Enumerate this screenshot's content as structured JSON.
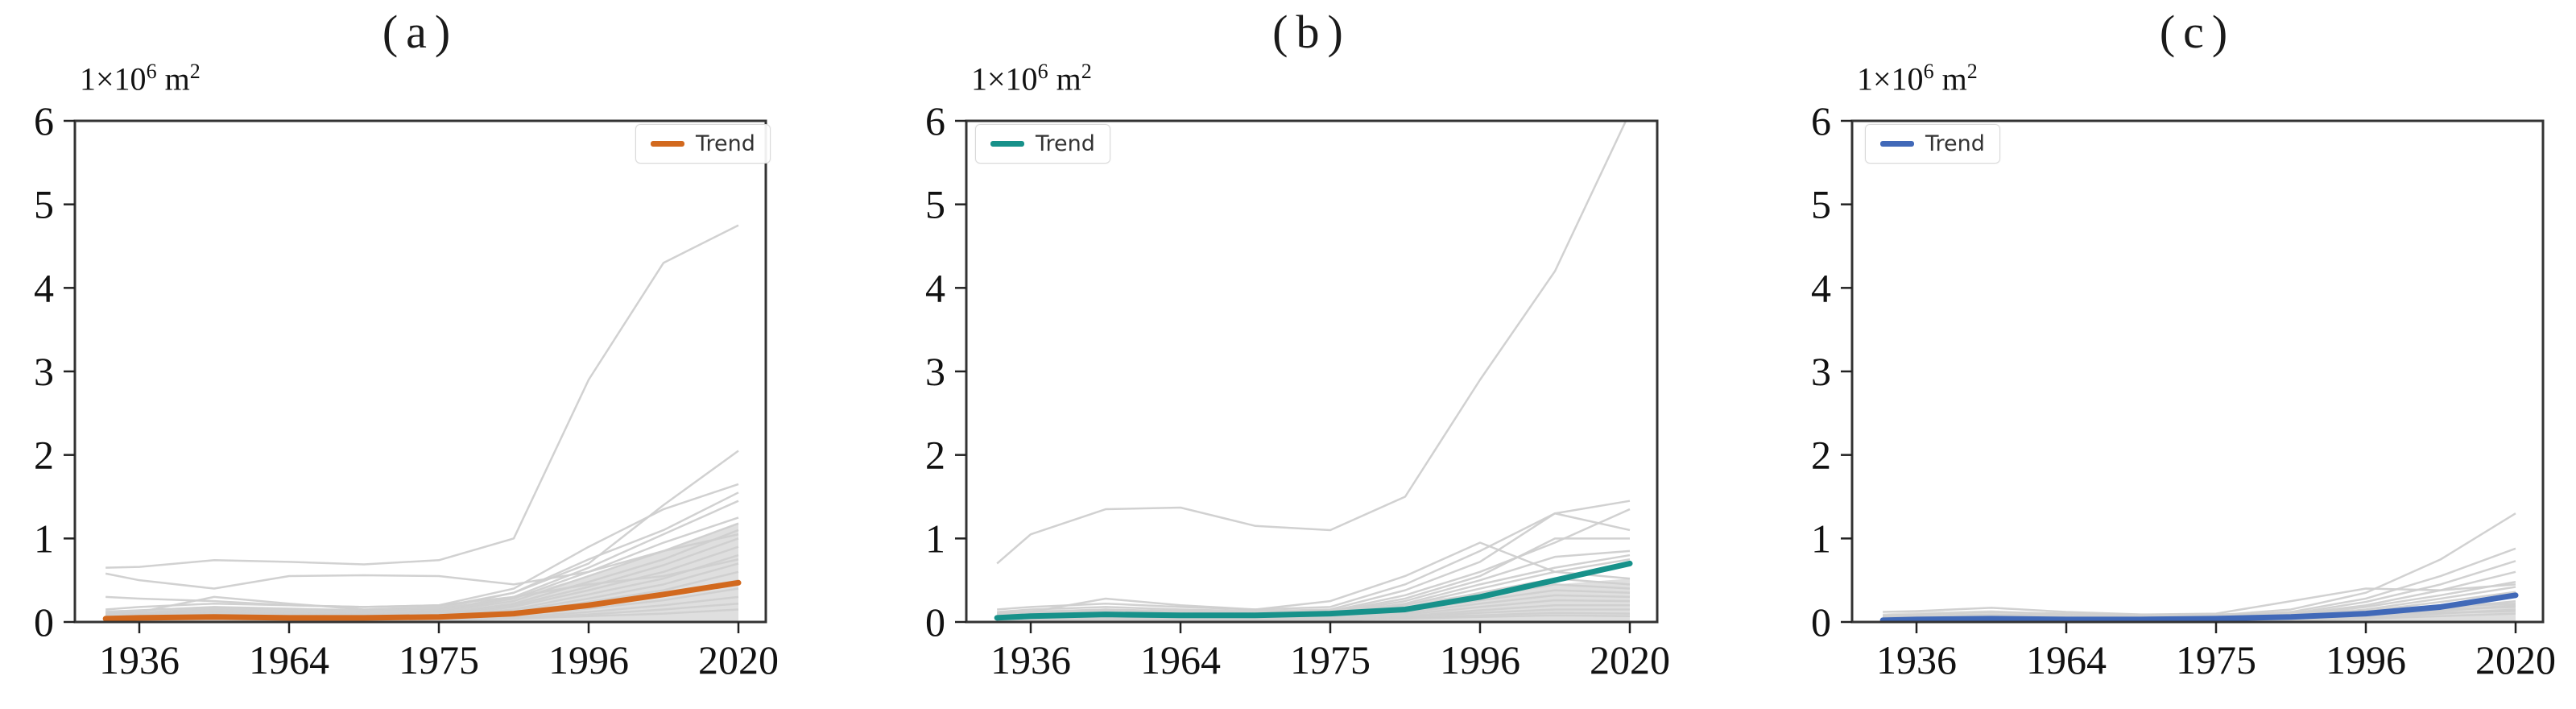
{
  "figure": {
    "ylabel": {
      "base": "1×10",
      "exp": "6",
      "unit": " m",
      "unit_exp": "2"
    },
    "legend_label": "Trend"
  },
  "chart_data": [
    {
      "type": "line",
      "title": "(a)",
      "ylabel": "1×10⁶ m²",
      "x_tick_labels": [
        "1936",
        "1964",
        "1975",
        "1996",
        "2020"
      ],
      "y_tick_labels": [
        "0",
        "1",
        "2",
        "3",
        "4",
        "5",
        "6"
      ],
      "ylim": [
        0,
        6
      ],
      "grid": false,
      "legend_position": "top-right",
      "legend_label": "Trend",
      "x_units": [
        -0.45,
        0,
        1,
        2,
        3,
        4,
        5,
        6,
        7,
        8
      ],
      "gray_color": "#cfcfcf",
      "band": {
        "color": "#dcdcdc",
        "top": [
          0.14,
          0.15,
          0.19,
          0.16,
          0.14,
          0.16,
          0.3,
          0.55,
          0.85,
          1.18
        ]
      },
      "series": [
        [
          0.65,
          0.66,
          0.74,
          0.72,
          0.69,
          0.74,
          1.0,
          2.9,
          4.3,
          4.75
        ],
        [
          0.1,
          0.12,
          0.3,
          0.22,
          0.15,
          0.18,
          0.35,
          0.7,
          1.4,
          2.05
        ],
        [
          0.58,
          0.5,
          0.4,
          0.55,
          0.56,
          0.55,
          0.45,
          0.6,
          0.85,
          1.05
        ],
        [
          0.15,
          0.18,
          0.22,
          0.2,
          0.18,
          0.2,
          0.4,
          0.9,
          1.35,
          1.65
        ],
        [
          0.12,
          0.14,
          0.18,
          0.16,
          0.14,
          0.16,
          0.35,
          0.75,
          1.1,
          1.55
        ],
        [
          0.1,
          0.11,
          0.16,
          0.14,
          0.12,
          0.15,
          0.3,
          0.65,
          1.05,
          1.45
        ],
        [
          0.08,
          0.1,
          0.14,
          0.12,
          0.1,
          0.13,
          0.28,
          0.6,
          0.95,
          1.25
        ],
        [
          0.07,
          0.09,
          0.12,
          0.11,
          0.09,
          0.12,
          0.25,
          0.55,
          0.85,
          1.18
        ],
        [
          0.06,
          0.08,
          0.11,
          0.1,
          0.08,
          0.1,
          0.22,
          0.48,
          0.75,
          1.1
        ],
        [
          0.05,
          0.07,
          0.1,
          0.09,
          0.07,
          0.09,
          0.2,
          0.42,
          0.68,
          1.0
        ],
        [
          0.05,
          0.06,
          0.09,
          0.08,
          0.06,
          0.08,
          0.18,
          0.38,
          0.6,
          0.9
        ],
        [
          0.04,
          0.05,
          0.08,
          0.07,
          0.05,
          0.07,
          0.15,
          0.33,
          0.52,
          0.8
        ],
        [
          0.04,
          0.05,
          0.07,
          0.06,
          0.05,
          0.06,
          0.13,
          0.28,
          0.45,
          0.7
        ],
        [
          0.03,
          0.04,
          0.06,
          0.05,
          0.04,
          0.05,
          0.11,
          0.24,
          0.38,
          0.6
        ],
        [
          0.03,
          0.04,
          0.05,
          0.05,
          0.04,
          0.05,
          0.09,
          0.2,
          0.32,
          0.5
        ],
        [
          0.02,
          0.03,
          0.05,
          0.04,
          0.03,
          0.04,
          0.08,
          0.16,
          0.26,
          0.4
        ],
        [
          0.02,
          0.03,
          0.04,
          0.03,
          0.03,
          0.03,
          0.06,
          0.12,
          0.2,
          0.3
        ],
        [
          0.02,
          0.02,
          0.03,
          0.03,
          0.02,
          0.03,
          0.05,
          0.09,
          0.15,
          0.22
        ],
        [
          0.01,
          0.02,
          0.03,
          0.02,
          0.02,
          0.02,
          0.04,
          0.07,
          0.1,
          0.15
        ],
        [
          0.3,
          0.28,
          0.25,
          0.2,
          0.18,
          0.2,
          0.3,
          0.45,
          0.55,
          0.75
        ]
      ],
      "trend": {
        "label": "Trend",
        "color": "#d2691e",
        "values": [
          0.04,
          0.05,
          0.06,
          0.05,
          0.05,
          0.06,
          0.1,
          0.2,
          0.33,
          0.47
        ]
      }
    },
    {
      "type": "line",
      "title": "(b)",
      "ylabel": "1×10⁶ m²",
      "x_tick_labels": [
        "1936",
        "1964",
        "1975",
        "1996",
        "2020"
      ],
      "y_tick_labels": [
        "0",
        "1",
        "2",
        "3",
        "4",
        "5",
        "6"
      ],
      "ylim": [
        0,
        6
      ],
      "grid": false,
      "legend_position": "top-left",
      "legend_label": "Trend",
      "x_units": [
        -0.45,
        0,
        1,
        2,
        3,
        4,
        5,
        6,
        7,
        8
      ],
      "gray_color": "#cfcfcf",
      "band": {
        "color": "#dcdcdc",
        "top": [
          0.12,
          0.14,
          0.16,
          0.13,
          0.12,
          0.14,
          0.22,
          0.35,
          0.45,
          0.52
        ]
      },
      "series": [
        [
          0.7,
          1.05,
          1.35,
          1.37,
          1.15,
          1.1,
          1.5,
          2.9,
          4.2,
          6.1
        ],
        [
          0.15,
          0.18,
          0.22,
          0.18,
          0.15,
          0.18,
          0.45,
          0.85,
          1.3,
          1.45
        ],
        [
          0.12,
          0.15,
          0.18,
          0.15,
          0.13,
          0.15,
          0.38,
          0.72,
          1.3,
          1.1
        ],
        [
          0.1,
          0.12,
          0.15,
          0.13,
          0.11,
          0.13,
          0.32,
          0.6,
          0.95,
          1.35
        ],
        [
          0.08,
          0.1,
          0.13,
          0.11,
          0.1,
          0.12,
          0.28,
          0.55,
          1.0,
          1.0
        ],
        [
          0.07,
          0.09,
          0.12,
          0.1,
          0.09,
          0.11,
          0.25,
          0.5,
          0.78,
          0.85
        ],
        [
          0.06,
          0.08,
          0.1,
          0.09,
          0.08,
          0.1,
          0.22,
          0.45,
          0.65,
          0.8
        ],
        [
          0.06,
          0.07,
          0.09,
          0.08,
          0.07,
          0.09,
          0.2,
          0.4,
          0.6,
          0.52
        ],
        [
          0.05,
          0.06,
          0.08,
          0.07,
          0.06,
          0.08,
          0.17,
          0.35,
          0.52,
          0.45
        ],
        [
          0.05,
          0.06,
          0.07,
          0.06,
          0.06,
          0.07,
          0.15,
          0.3,
          0.45,
          0.4
        ],
        [
          0.04,
          0.05,
          0.06,
          0.06,
          0.05,
          0.06,
          0.13,
          0.26,
          0.38,
          0.35
        ],
        [
          0.04,
          0.04,
          0.06,
          0.05,
          0.04,
          0.05,
          0.11,
          0.22,
          0.32,
          0.3
        ],
        [
          0.03,
          0.04,
          0.05,
          0.04,
          0.04,
          0.05,
          0.09,
          0.18,
          0.26,
          0.25
        ],
        [
          0.03,
          0.03,
          0.04,
          0.04,
          0.03,
          0.04,
          0.07,
          0.14,
          0.2,
          0.2
        ],
        [
          0.02,
          0.03,
          0.04,
          0.03,
          0.03,
          0.03,
          0.06,
          0.11,
          0.15,
          0.15
        ],
        [
          0.02,
          0.02,
          0.03,
          0.03,
          0.02,
          0.03,
          0.05,
          0.08,
          0.11,
          0.1
        ],
        [
          0.01,
          0.02,
          0.02,
          0.02,
          0.02,
          0.02,
          0.04,
          0.06,
          0.08,
          0.07
        ],
        [
          0.1,
          0.12,
          0.28,
          0.2,
          0.15,
          0.25,
          0.55,
          0.95,
          0.6,
          0.75
        ]
      ],
      "trend": {
        "label": "Trend",
        "color": "#17918a",
        "values": [
          0.05,
          0.07,
          0.09,
          0.08,
          0.08,
          0.1,
          0.15,
          0.3,
          0.5,
          0.7
        ]
      }
    },
    {
      "type": "line",
      "title": "(c)",
      "ylabel": "1×10⁶ m²",
      "x_tick_labels": [
        "1936",
        "1964",
        "1975",
        "1996",
        "2020"
      ],
      "y_tick_labels": [
        "0",
        "1",
        "2",
        "3",
        "4",
        "5",
        "6"
      ],
      "ylim": [
        0,
        6
      ],
      "grid": false,
      "legend_position": "top-left",
      "legend_label": "Trend",
      "x_units": [
        -0.45,
        0,
        1,
        2,
        3,
        4,
        5,
        6,
        7,
        8
      ],
      "gray_color": "#cfcfcf",
      "band": {
        "color": "#dcdcdc",
        "top": [
          0.1,
          0.12,
          0.14,
          0.1,
          0.08,
          0.09,
          0.12,
          0.15,
          0.2,
          0.25
        ]
      },
      "series": [
        [
          0.05,
          0.06,
          0.08,
          0.07,
          0.06,
          0.08,
          0.15,
          0.35,
          0.75,
          1.3
        ],
        [
          0.04,
          0.05,
          0.07,
          0.06,
          0.05,
          0.07,
          0.12,
          0.28,
          0.55,
          0.88
        ],
        [
          0.04,
          0.05,
          0.06,
          0.05,
          0.05,
          0.06,
          0.1,
          0.24,
          0.45,
          0.73
        ],
        [
          0.03,
          0.04,
          0.05,
          0.05,
          0.04,
          0.05,
          0.09,
          0.2,
          0.38,
          0.6
        ],
        [
          0.12,
          0.13,
          0.17,
          0.12,
          0.09,
          0.1,
          0.25,
          0.4,
          0.38,
          0.45
        ],
        [
          0.03,
          0.04,
          0.05,
          0.04,
          0.04,
          0.05,
          0.08,
          0.18,
          0.32,
          0.48
        ],
        [
          0.03,
          0.03,
          0.04,
          0.04,
          0.03,
          0.04,
          0.07,
          0.15,
          0.28,
          0.42
        ],
        [
          0.02,
          0.03,
          0.04,
          0.03,
          0.03,
          0.04,
          0.06,
          0.13,
          0.24,
          0.36
        ],
        [
          0.02,
          0.03,
          0.03,
          0.03,
          0.02,
          0.03,
          0.05,
          0.11,
          0.2,
          0.3
        ],
        [
          0.02,
          0.02,
          0.03,
          0.02,
          0.02,
          0.03,
          0.05,
          0.09,
          0.16,
          0.25
        ],
        [
          0.01,
          0.02,
          0.02,
          0.02,
          0.02,
          0.02,
          0.04,
          0.07,
          0.13,
          0.2
        ],
        [
          0.01,
          0.01,
          0.02,
          0.02,
          0.01,
          0.02,
          0.03,
          0.05,
          0.1,
          0.15
        ],
        [
          0.01,
          0.01,
          0.02,
          0.01,
          0.01,
          0.01,
          0.02,
          0.04,
          0.07,
          0.1
        ],
        [
          0.08,
          0.09,
          0.12,
          0.1,
          0.08,
          0.09,
          0.11,
          0.14,
          0.18,
          0.22
        ],
        [
          0.06,
          0.07,
          0.09,
          0.08,
          0.07,
          0.08,
          0.09,
          0.12,
          0.15,
          0.18
        ],
        [
          0.05,
          0.05,
          0.06,
          0.06,
          0.05,
          0.06,
          0.07,
          0.09,
          0.11,
          0.13
        ]
      ],
      "trend": {
        "label": "Trend",
        "color": "#4169b8",
        "values": [
          0.02,
          0.03,
          0.04,
          0.03,
          0.03,
          0.04,
          0.06,
          0.1,
          0.18,
          0.32
        ]
      }
    }
  ]
}
